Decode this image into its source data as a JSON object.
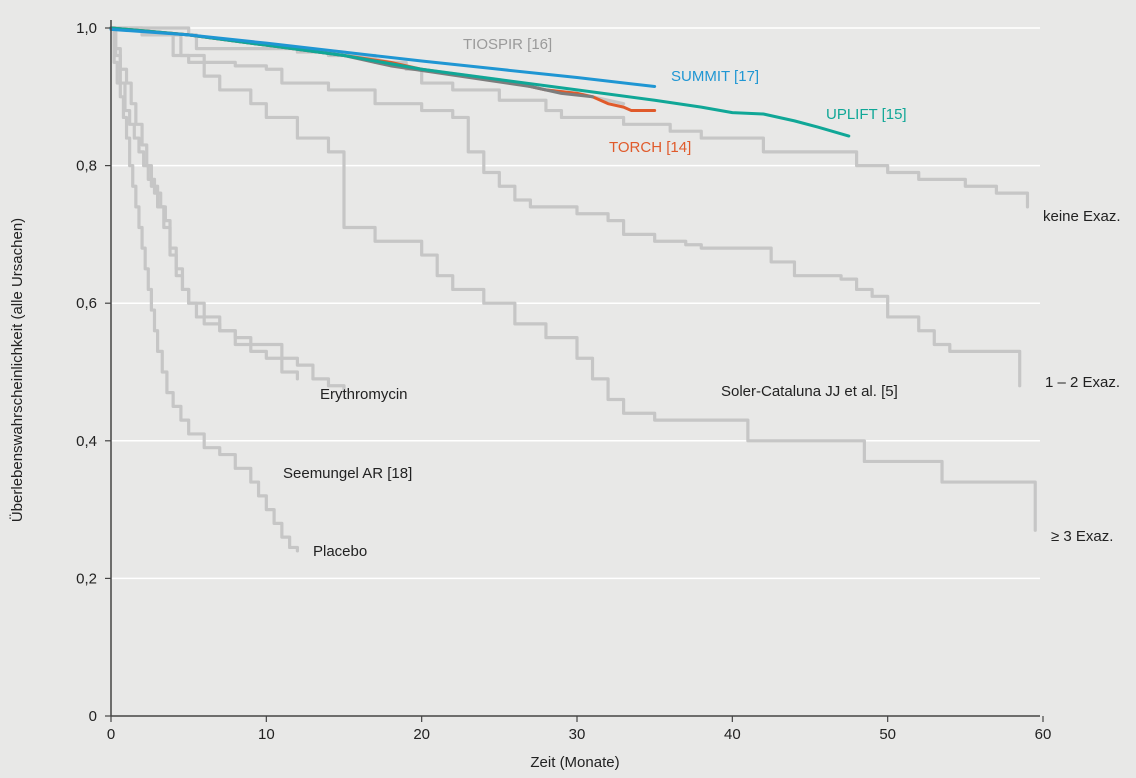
{
  "chart_data": {
    "type": "line",
    "xlabel": "Zeit (Monate)",
    "ylabel": "Überlebenswahrscheinlichkeit (alle Ursachen)",
    "xlim": [
      0,
      60
    ],
    "ylim": [
      0,
      1.0
    ],
    "x_ticks": [
      "0",
      "10",
      "20",
      "30",
      "40",
      "50",
      "60"
    ],
    "y_ticks": [
      "0",
      "0,2",
      "0,4",
      "0,6",
      "0,8",
      "1,0"
    ],
    "grid": "horizontal",
    "colors": {
      "background": "#e8e8e7",
      "grid": "#ffffff",
      "gray_series": "#c6c6c6",
      "summit": "#1f96d3",
      "uplift": "#10a797",
      "torch": "#e05a2b",
      "dark_gray": "#7d7d7d",
      "tiospir_label": "#9a9a9a"
    },
    "series": [
      {
        "name": "keine Exaz.",
        "step": true,
        "color": "gray",
        "points": [
          [
            0,
            1.0
          ],
          [
            5,
            0.99
          ],
          [
            5.5,
            0.97
          ],
          [
            10,
            0.97
          ],
          [
            12,
            0.965
          ],
          [
            14,
            0.96
          ],
          [
            17,
            0.95
          ],
          [
            19,
            0.94
          ],
          [
            20,
            0.92
          ],
          [
            22,
            0.91
          ],
          [
            25,
            0.895
          ],
          [
            28,
            0.88
          ],
          [
            29,
            0.87
          ],
          [
            33,
            0.86
          ],
          [
            36,
            0.85
          ],
          [
            38,
            0.84
          ],
          [
            41,
            0.84
          ],
          [
            42,
            0.82
          ],
          [
            47,
            0.82
          ],
          [
            48,
            0.8
          ],
          [
            50,
            0.79
          ],
          [
            52,
            0.78
          ],
          [
            55,
            0.77
          ],
          [
            57,
            0.76
          ],
          [
            59,
            0.74
          ]
        ]
      },
      {
        "name": "1 – 2 Exaz.",
        "step": true,
        "color": "gray",
        "points": [
          [
            0,
            1.0
          ],
          [
            2,
            0.99
          ],
          [
            4.5,
            0.96
          ],
          [
            6,
            0.95
          ],
          [
            8,
            0.945
          ],
          [
            10,
            0.94
          ],
          [
            11,
            0.92
          ],
          [
            14,
            0.91
          ],
          [
            17,
            0.89
          ],
          [
            20,
            0.88
          ],
          [
            22,
            0.87
          ],
          [
            23,
            0.82
          ],
          [
            24,
            0.79
          ],
          [
            25,
            0.77
          ],
          [
            26,
            0.75
          ],
          [
            27,
            0.74
          ],
          [
            30,
            0.73
          ],
          [
            32,
            0.72
          ],
          [
            33,
            0.7
          ],
          [
            35,
            0.69
          ],
          [
            37,
            0.685
          ],
          [
            38,
            0.68
          ],
          [
            42,
            0.68
          ],
          [
            42.5,
            0.66
          ],
          [
            44,
            0.64
          ],
          [
            47,
            0.635
          ],
          [
            48,
            0.62
          ],
          [
            49,
            0.61
          ],
          [
            50,
            0.58
          ],
          [
            52,
            0.56
          ],
          [
            53,
            0.54
          ],
          [
            54,
            0.53
          ],
          [
            58.5,
            0.53
          ],
          [
            58.5,
            0.48
          ]
        ]
      },
      {
        "name": "≥ 3 Exaz.",
        "step": true,
        "color": "gray",
        "points": [
          [
            0,
            1.0
          ],
          [
            2,
            0.99
          ],
          [
            4,
            0.96
          ],
          [
            5,
            0.95
          ],
          [
            6,
            0.93
          ],
          [
            7,
            0.91
          ],
          [
            9,
            0.89
          ],
          [
            10,
            0.87
          ],
          [
            12,
            0.84
          ],
          [
            14,
            0.82
          ],
          [
            15,
            0.71
          ],
          [
            17,
            0.69
          ],
          [
            20,
            0.67
          ],
          [
            21,
            0.64
          ],
          [
            22,
            0.62
          ],
          [
            24,
            0.6
          ],
          [
            26,
            0.57
          ],
          [
            28,
            0.55
          ],
          [
            30,
            0.52
          ],
          [
            31,
            0.49
          ],
          [
            32,
            0.46
          ],
          [
            33,
            0.44
          ],
          [
            35,
            0.43
          ],
          [
            40,
            0.43
          ],
          [
            41,
            0.4
          ],
          [
            48,
            0.4
          ],
          [
            48.5,
            0.37
          ],
          [
            53,
            0.37
          ],
          [
            53.5,
            0.34
          ],
          [
            59,
            0.34
          ],
          [
            59.5,
            0.31
          ],
          [
            59.5,
            0.27
          ]
        ]
      },
      {
        "name": "Erythromycin",
        "step": true,
        "color": "gray",
        "points": [
          [
            0,
            1.0
          ],
          [
            0.3,
            0.96
          ],
          [
            0.6,
            0.92
          ],
          [
            0.9,
            0.88
          ],
          [
            1.2,
            0.86
          ],
          [
            1.5,
            0.84
          ],
          [
            1.8,
            0.82
          ],
          [
            2.1,
            0.8
          ],
          [
            2.4,
            0.78
          ],
          [
            2.8,
            0.76
          ],
          [
            3.2,
            0.74
          ],
          [
            3.5,
            0.72
          ],
          [
            3.8,
            0.68
          ],
          [
            4.2,
            0.65
          ],
          [
            4.6,
            0.62
          ],
          [
            5,
            0.6
          ],
          [
            5.5,
            0.58
          ],
          [
            6,
            0.57
          ],
          [
            7,
            0.56
          ],
          [
            8,
            0.54
          ],
          [
            10,
            0.54
          ],
          [
            11,
            0.52
          ],
          [
            12,
            0.51
          ],
          [
            13,
            0.49
          ],
          [
            14,
            0.48
          ],
          [
            15,
            0.475
          ]
        ]
      },
      {
        "name": "Seemungel AR [18]",
        "step": true,
        "color": "gray",
        "points": [
          [
            0,
            1.0
          ],
          [
            0.2,
            0.95
          ],
          [
            0.4,
            0.92
          ],
          [
            0.6,
            0.9
          ],
          [
            0.8,
            0.87
          ],
          [
            1,
            0.84
          ],
          [
            1.2,
            0.8
          ],
          [
            1.4,
            0.77
          ],
          [
            1.6,
            0.74
          ],
          [
            1.8,
            0.71
          ],
          [
            2,
            0.68
          ],
          [
            2.2,
            0.65
          ],
          [
            2.4,
            0.62
          ],
          [
            2.6,
            0.59
          ],
          [
            2.8,
            0.56
          ],
          [
            3,
            0.53
          ],
          [
            3.3,
            0.5
          ],
          [
            3.6,
            0.47
          ],
          [
            4,
            0.45
          ],
          [
            4.5,
            0.43
          ],
          [
            5,
            0.41
          ],
          [
            6,
            0.39
          ],
          [
            7,
            0.38
          ],
          [
            8,
            0.36
          ],
          [
            9,
            0.34
          ],
          [
            9.5,
            0.32
          ],
          [
            10,
            0.3
          ],
          [
            10.5,
            0.28
          ],
          [
            11,
            0.26
          ],
          [
            11.5,
            0.245
          ],
          [
            12,
            0.24
          ]
        ]
      },
      {
        "name": "Placebo",
        "step": true,
        "color": "gray",
        "points": [
          [
            0,
            1.0
          ],
          [
            0.3,
            0.97
          ],
          [
            0.6,
            0.94
          ],
          [
            1,
            0.92
          ],
          [
            1.3,
            0.89
          ],
          [
            1.6,
            0.86
          ],
          [
            2,
            0.83
          ],
          [
            2.3,
            0.8
          ],
          [
            2.6,
            0.77
          ],
          [
            3,
            0.74
          ],
          [
            3.4,
            0.71
          ],
          [
            3.8,
            0.67
          ],
          [
            4.2,
            0.64
          ],
          [
            4.6,
            0.62
          ],
          [
            5,
            0.6
          ],
          [
            6,
            0.58
          ],
          [
            7,
            0.56
          ],
          [
            8,
            0.55
          ],
          [
            9,
            0.53
          ],
          [
            10,
            0.52
          ],
          [
            11,
            0.5
          ],
          [
            12,
            0.49
          ]
        ]
      },
      {
        "name": "TIOSPIR [16]",
        "step": false,
        "color": "gray",
        "points": [
          [
            0,
            1.0
          ],
          [
            5,
            0.99
          ],
          [
            10,
            0.975
          ],
          [
            15,
            0.965
          ],
          [
            20,
            0.94
          ],
          [
            25,
            0.925
          ],
          [
            28,
            0.91
          ],
          [
            30,
            0.905
          ],
          [
            33,
            0.89
          ]
        ]
      },
      {
        "name": "TORCH [14]",
        "step": false,
        "color": "torch",
        "points": [
          [
            0,
            1.0
          ],
          [
            5,
            0.99
          ],
          [
            10,
            0.975
          ],
          [
            15,
            0.96
          ],
          [
            18,
            0.95
          ],
          [
            20,
            0.94
          ],
          [
            23,
            0.93
          ],
          [
            26,
            0.92
          ],
          [
            28,
            0.91
          ],
          [
            30,
            0.905
          ],
          [
            31,
            0.9
          ],
          [
            32,
            0.89
          ],
          [
            33,
            0.885
          ],
          [
            33.5,
            0.88
          ],
          [
            35,
            0.88
          ]
        ]
      },
      {
        "name": "",
        "step": false,
        "color": "dark_gray",
        "points": [
          [
            0,
            1.0
          ],
          [
            5,
            0.99
          ],
          [
            10,
            0.975
          ],
          [
            15,
            0.96
          ],
          [
            18,
            0.945
          ],
          [
            21,
            0.935
          ],
          [
            24,
            0.925
          ],
          [
            27,
            0.915
          ],
          [
            29,
            0.905
          ],
          [
            31,
            0.9
          ]
        ]
      },
      {
        "name": "UPLIFT [15]",
        "step": false,
        "color": "uplift",
        "points": [
          [
            0,
            1.0
          ],
          [
            5,
            0.99
          ],
          [
            10,
            0.975
          ],
          [
            15,
            0.96
          ],
          [
            20,
            0.94
          ],
          [
            25,
            0.925
          ],
          [
            30,
            0.91
          ],
          [
            35,
            0.895
          ],
          [
            38,
            0.885
          ],
          [
            40,
            0.877
          ],
          [
            42,
            0.875
          ],
          [
            44,
            0.865
          ],
          [
            45.5,
            0.856
          ],
          [
            47.5,
            0.843
          ]
        ]
      },
      {
        "name": "SUMMIT [17]",
        "step": false,
        "color": "summit",
        "points": [
          [
            0,
            0.998
          ],
          [
            5,
            0.99
          ],
          [
            10,
            0.978
          ],
          [
            15,
            0.965
          ],
          [
            20,
            0.952
          ],
          [
            25,
            0.94
          ],
          [
            30,
            0.928
          ],
          [
            35,
            0.915
          ]
        ]
      }
    ],
    "labels": [
      {
        "text": "TIOSPIR [16]",
        "color": "tiospir_label"
      },
      {
        "text": "SUMMIT [17]",
        "color": "summit"
      },
      {
        "text": "UPLIFT [15]",
        "color": "uplift"
      },
      {
        "text": "TORCH [14]",
        "color": "torch"
      },
      {
        "text": "keine Exaz.",
        "color": "text"
      },
      {
        "text": "1 – 2 Exaz.",
        "color": "text"
      },
      {
        "text": "≥ 3 Exaz.",
        "color": "text"
      },
      {
        "text": "Soler-Cataluna JJ et al. [5]",
        "color": "text"
      },
      {
        "text": "Erythromycin",
        "color": "text"
      },
      {
        "text": "Seemungel AR [18]",
        "color": "text"
      },
      {
        "text": "Placebo",
        "color": "text"
      }
    ]
  }
}
